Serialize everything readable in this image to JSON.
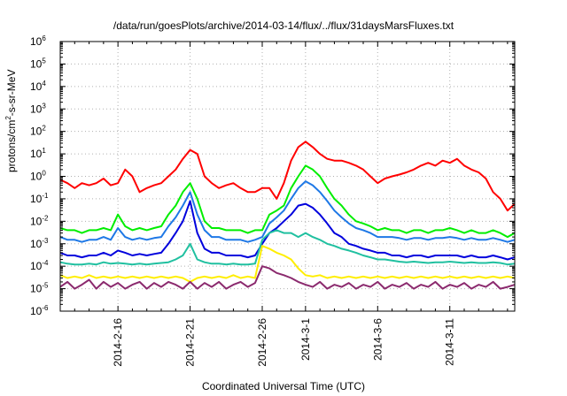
{
  "chart_data": {
    "type": "line",
    "title": "/data/run/goesPlots/archive/2014-03-14/flux/../flux/31daysMarsFluxes.txt",
    "xlabel": "Coordinated Universal Time (UTC)",
    "ylabel_prefix": "protons/cm",
    "ylabel_sup": "2",
    "ylabel_suffix": "-s-sr-MeV",
    "yscale": "log",
    "ylim_exp": [
      -6,
      6
    ],
    "ytick_exponents": [
      -6,
      -5,
      -4,
      -3,
      -2,
      -1,
      0,
      1,
      2,
      3,
      4,
      5,
      6
    ],
    "ytick_base": "10",
    "xlim_days": [
      0,
      31.5
    ],
    "xticks": [
      {
        "day": 4,
        "label": "2014-2-16"
      },
      {
        "day": 9,
        "label": "2014-2-21"
      },
      {
        "day": 14,
        "label": "2014-2-26"
      },
      {
        "day": 17,
        "label": "2014-3-1"
      },
      {
        "day": 22,
        "label": "2014-3-6"
      },
      {
        "day": 27,
        "label": "2014-3-11"
      }
    ],
    "grid": true,
    "series": [
      {
        "color": "#ff0000",
        "x": [
          0,
          0.5,
          1,
          1.5,
          2,
          2.5,
          3,
          3.5,
          4,
          4.5,
          5,
          5.5,
          6,
          6.5,
          7,
          7.5,
          8,
          8.5,
          9,
          9.5,
          10,
          10.5,
          11,
          11.5,
          12,
          12.5,
          13,
          13.5,
          14,
          14.5,
          15,
          15.5,
          16,
          16.5,
          17,
          17.5,
          18,
          18.5,
          19,
          19.5,
          20,
          20.5,
          21,
          21.5,
          22,
          22.5,
          23,
          23.5,
          24,
          24.5,
          25,
          25.5,
          26,
          26.5,
          27,
          27.5,
          28,
          28.5,
          29,
          29.5,
          30,
          30.5,
          31,
          31.5
        ],
        "y": [
          0.7,
          0.5,
          0.3,
          0.5,
          0.4,
          0.5,
          0.8,
          0.4,
          0.5,
          2,
          1,
          0.2,
          0.3,
          0.4,
          0.5,
          1,
          2,
          6,
          15,
          10,
          1,
          0.5,
          0.3,
          0.4,
          0.5,
          0.3,
          0.2,
          0.2,
          0.3,
          0.3,
          0.1,
          0.5,
          5,
          20,
          35,
          20,
          10,
          6,
          5,
          5,
          4,
          3,
          2,
          1,
          0.5,
          0.8,
          1,
          1.2,
          1.5,
          2,
          3,
          4,
          3,
          5,
          4,
          6,
          3,
          2,
          1.5,
          0.8,
          0.2,
          0.1,
          0.03,
          0.06
        ]
      },
      {
        "color": "#00ee00",
        "x": [
          0,
          0.5,
          1,
          1.5,
          2,
          2.5,
          3,
          3.5,
          4,
          4.5,
          5,
          5.5,
          6,
          6.5,
          7,
          7.5,
          8,
          8.5,
          9,
          9.5,
          10,
          10.5,
          11,
          11.5,
          12,
          12.5,
          13,
          13.5,
          14,
          14.5,
          15,
          15.5,
          16,
          16.5,
          17,
          17.5,
          18,
          18.5,
          19,
          19.5,
          20,
          20.5,
          21,
          21.5,
          22,
          22.5,
          23,
          23.5,
          24,
          24.5,
          25,
          25.5,
          26,
          26.5,
          27,
          27.5,
          28,
          28.5,
          29,
          29.5,
          30,
          30.5,
          31,
          31.5
        ],
        "y": [
          0.005,
          0.004,
          0.004,
          0.003,
          0.004,
          0.004,
          0.005,
          0.004,
          0.02,
          0.006,
          0.004,
          0.005,
          0.004,
          0.005,
          0.006,
          0.02,
          0.05,
          0.2,
          0.5,
          0.1,
          0.01,
          0.005,
          0.005,
          0.004,
          0.004,
          0.004,
          0.003,
          0.004,
          0.004,
          0.02,
          0.03,
          0.05,
          0.3,
          1,
          3,
          2,
          1,
          0.3,
          0.1,
          0.05,
          0.02,
          0.01,
          0.008,
          0.006,
          0.004,
          0.005,
          0.004,
          0.004,
          0.003,
          0.004,
          0.004,
          0.003,
          0.004,
          0.004,
          0.005,
          0.004,
          0.003,
          0.004,
          0.003,
          0.003,
          0.004,
          0.003,
          0.002,
          0.003
        ]
      },
      {
        "color": "#1e78e6",
        "x": [
          0,
          0.5,
          1,
          1.5,
          2,
          2.5,
          3,
          3.5,
          4,
          4.5,
          5,
          5.5,
          6,
          6.5,
          7,
          7.5,
          8,
          8.5,
          9,
          9.5,
          10,
          10.5,
          11,
          11.5,
          12,
          12.5,
          13,
          13.5,
          14,
          14.5,
          15,
          15.5,
          16,
          16.5,
          17,
          17.5,
          18,
          18.5,
          19,
          19.5,
          20,
          20.5,
          21,
          21.5,
          22,
          22.5,
          23,
          23.5,
          24,
          24.5,
          25,
          25.5,
          26,
          26.5,
          27,
          27.5,
          28,
          28.5,
          29,
          29.5,
          30,
          30.5,
          31,
          31.5
        ],
        "y": [
          0.002,
          0.0015,
          0.0015,
          0.0012,
          0.0015,
          0.0015,
          0.002,
          0.0015,
          0.005,
          0.002,
          0.0015,
          0.0018,
          0.0015,
          0.0018,
          0.002,
          0.006,
          0.015,
          0.05,
          0.2,
          0.02,
          0.004,
          0.002,
          0.002,
          0.0015,
          0.0015,
          0.0015,
          0.0012,
          0.0015,
          0.002,
          0.008,
          0.015,
          0.03,
          0.1,
          0.3,
          0.6,
          0.4,
          0.2,
          0.08,
          0.03,
          0.015,
          0.008,
          0.005,
          0.004,
          0.003,
          0.002,
          0.002,
          0.002,
          0.0018,
          0.0015,
          0.0018,
          0.0018,
          0.0015,
          0.0018,
          0.0018,
          0.002,
          0.0018,
          0.0015,
          0.0018,
          0.0015,
          0.0015,
          0.0018,
          0.0015,
          0.0012,
          0.0015
        ]
      },
      {
        "color": "#0000dd",
        "x": [
          0,
          0.5,
          1,
          1.5,
          2,
          2.5,
          3,
          3.5,
          4,
          4.5,
          5,
          5.5,
          6,
          6.5,
          7,
          7.5,
          8,
          8.5,
          9,
          9.5,
          10,
          10.5,
          11,
          11.5,
          12,
          12.5,
          13,
          13.5,
          14,
          14.5,
          15,
          15.5,
          16,
          16.5,
          17,
          17.5,
          18,
          18.5,
          19,
          19.5,
          20,
          20.5,
          21,
          21.5,
          22,
          22.5,
          23,
          23.5,
          24,
          24.5,
          25,
          25.5,
          26,
          26.5,
          27,
          27.5,
          28,
          28.5,
          29,
          29.5,
          30,
          30.5,
          31,
          31.5
        ],
        "y": [
          0.0004,
          0.0003,
          0.0003,
          0.00025,
          0.0003,
          0.0003,
          0.0004,
          0.0003,
          0.0005,
          0.0004,
          0.0003,
          0.00035,
          0.0003,
          0.00035,
          0.0004,
          0.001,
          0.003,
          0.01,
          0.08,
          0.003,
          0.0006,
          0.0004,
          0.0004,
          0.0003,
          0.0003,
          0.0003,
          0.00025,
          0.0003,
          0.001,
          0.003,
          0.005,
          0.01,
          0.02,
          0.05,
          0.06,
          0.04,
          0.02,
          0.008,
          0.003,
          0.002,
          0.001,
          0.0008,
          0.0006,
          0.0005,
          0.0004,
          0.0004,
          0.0003,
          0.0003,
          0.00025,
          0.0003,
          0.0003,
          0.00025,
          0.0003,
          0.0003,
          0.0003,
          0.0003,
          0.00025,
          0.0003,
          0.00025,
          0.00025,
          0.0003,
          0.00025,
          0.0002,
          0.00025
        ]
      },
      {
        "color": "#20c0a0",
        "x": [
          0,
          0.5,
          1,
          1.5,
          2,
          2.5,
          3,
          3.5,
          4,
          4.5,
          5,
          5.5,
          6,
          6.5,
          7,
          7.5,
          8,
          8.5,
          9,
          9.5,
          10,
          10.5,
          11,
          11.5,
          12,
          12.5,
          13,
          13.5,
          14,
          14.5,
          15,
          15.5,
          16,
          16.5,
          17,
          17.5,
          18,
          18.5,
          19,
          19.5,
          20,
          20.5,
          21,
          21.5,
          22,
          22.5,
          23,
          23.5,
          24,
          24.5,
          25,
          25.5,
          26,
          26.5,
          27,
          27.5,
          28,
          28.5,
          29,
          29.5,
          30,
          30.5,
          31,
          31.5
        ],
        "y": [
          0.00015,
          0.00013,
          0.00012,
          0.00012,
          0.00013,
          0.00012,
          0.00015,
          0.00013,
          0.00014,
          0.00013,
          0.00012,
          0.00013,
          0.00012,
          0.00013,
          0.00014,
          0.00015,
          0.0002,
          0.0003,
          0.001,
          0.0002,
          0.00015,
          0.00013,
          0.00013,
          0.00012,
          0.00013,
          0.00012,
          0.00012,
          0.00013,
          0.0015,
          0.003,
          0.004,
          0.003,
          0.003,
          0.002,
          0.003,
          0.002,
          0.0015,
          0.001,
          0.0008,
          0.0006,
          0.0005,
          0.0004,
          0.0003,
          0.00025,
          0.0002,
          0.0002,
          0.00018,
          0.00016,
          0.00015,
          0.00016,
          0.00015,
          0.00014,
          0.00015,
          0.00015,
          0.00016,
          0.00015,
          0.00014,
          0.00015,
          0.00014,
          0.00014,
          0.00015,
          0.00014,
          0.00012,
          0.00013
        ]
      },
      {
        "color": "#ffee00",
        "x": [
          0,
          0.5,
          1,
          1.5,
          2,
          2.5,
          3,
          3.5,
          4,
          4.5,
          5,
          5.5,
          6,
          6.5,
          7,
          7.5,
          8,
          8.5,
          9,
          9.5,
          10,
          10.5,
          11,
          11.5,
          12,
          12.5,
          13,
          13.5,
          14,
          14.5,
          15,
          15.5,
          16,
          16.5,
          17,
          17.5,
          18,
          18.5,
          19,
          19.5,
          20,
          20.5,
          21,
          21.5,
          22,
          22.5,
          23,
          23.5,
          24,
          24.5,
          25,
          25.5,
          26,
          26.5,
          27,
          27.5,
          28,
          28.5,
          29,
          29.5,
          30,
          30.5,
          31,
          31.5
        ],
        "y": [
          4e-05,
          3e-05,
          3.5e-05,
          3e-05,
          4e-05,
          3e-05,
          3.5e-05,
          3e-05,
          3.5e-05,
          3e-05,
          3.5e-05,
          3e-05,
          3.5e-05,
          3e-05,
          3.5e-05,
          3e-05,
          3.5e-05,
          3e-05,
          2e-05,
          3e-05,
          3.5e-05,
          3e-05,
          3.5e-05,
          3e-05,
          4e-05,
          3e-05,
          3.5e-05,
          3e-05,
          0.0008,
          0.0006,
          0.0004,
          0.0003,
          0.0002,
          8e-05,
          4e-05,
          3.5e-05,
          4e-05,
          3e-05,
          3.5e-05,
          3e-05,
          3.5e-05,
          3e-05,
          3.5e-05,
          3e-05,
          3.5e-05,
          3e-05,
          3.5e-05,
          3e-05,
          3.5e-05,
          3e-05,
          3.5e-05,
          3e-05,
          3.5e-05,
          3e-05,
          3.5e-05,
          3e-05,
          3.5e-05,
          3e-05,
          3.5e-05,
          3e-05,
          3.5e-05,
          3e-05,
          3.5e-05,
          3e-05
        ]
      },
      {
        "color": "#8b2a6e",
        "x": [
          0,
          0.5,
          1,
          1.5,
          2,
          2.5,
          3,
          3.5,
          4,
          4.5,
          5,
          5.5,
          6,
          6.5,
          7,
          7.5,
          8,
          8.5,
          9,
          9.5,
          10,
          10.5,
          11,
          11.5,
          12,
          12.5,
          13,
          13.5,
          14,
          14.5,
          15,
          15.5,
          16,
          16.5,
          17,
          17.5,
          18,
          18.5,
          19,
          19.5,
          20,
          20.5,
          21,
          21.5,
          22,
          22.5,
          23,
          23.5,
          24,
          24.5,
          25,
          25.5,
          26,
          26.5,
          27,
          27.5,
          28,
          28.5,
          29,
          29.5,
          30,
          30.5,
          31,
          31.5
        ],
        "y": [
          1.2e-05,
          2e-05,
          1e-05,
          1.5e-05,
          2.5e-05,
          1e-05,
          2e-05,
          1.2e-05,
          1.8e-05,
          1e-05,
          1.5e-05,
          2e-05,
          1e-05,
          1.8e-05,
          1.2e-05,
          2e-05,
          1.5e-05,
          1e-05,
          2e-05,
          1e-05,
          1.8e-05,
          1.2e-05,
          2e-05,
          1e-05,
          1.5e-05,
          2e-05,
          1.2e-05,
          1.8e-05,
          0.0001,
          8e-05,
          5e-05,
          4e-05,
          3e-05,
          2e-05,
          1.5e-05,
          1.2e-05,
          2e-05,
          1e-05,
          1.5e-05,
          1.2e-05,
          1.8e-05,
          1e-05,
          1.5e-05,
          1.2e-05,
          2e-05,
          1e-05,
          1.5e-05,
          1.2e-05,
          1.8e-05,
          1e-05,
          1.5e-05,
          1.2e-05,
          2e-05,
          1e-05,
          1.5e-05,
          1.2e-05,
          1.8e-05,
          1e-05,
          1.5e-05,
          1.2e-05,
          2e-05,
          1e-05,
          1.2e-05,
          1.5e-05
        ]
      }
    ]
  }
}
